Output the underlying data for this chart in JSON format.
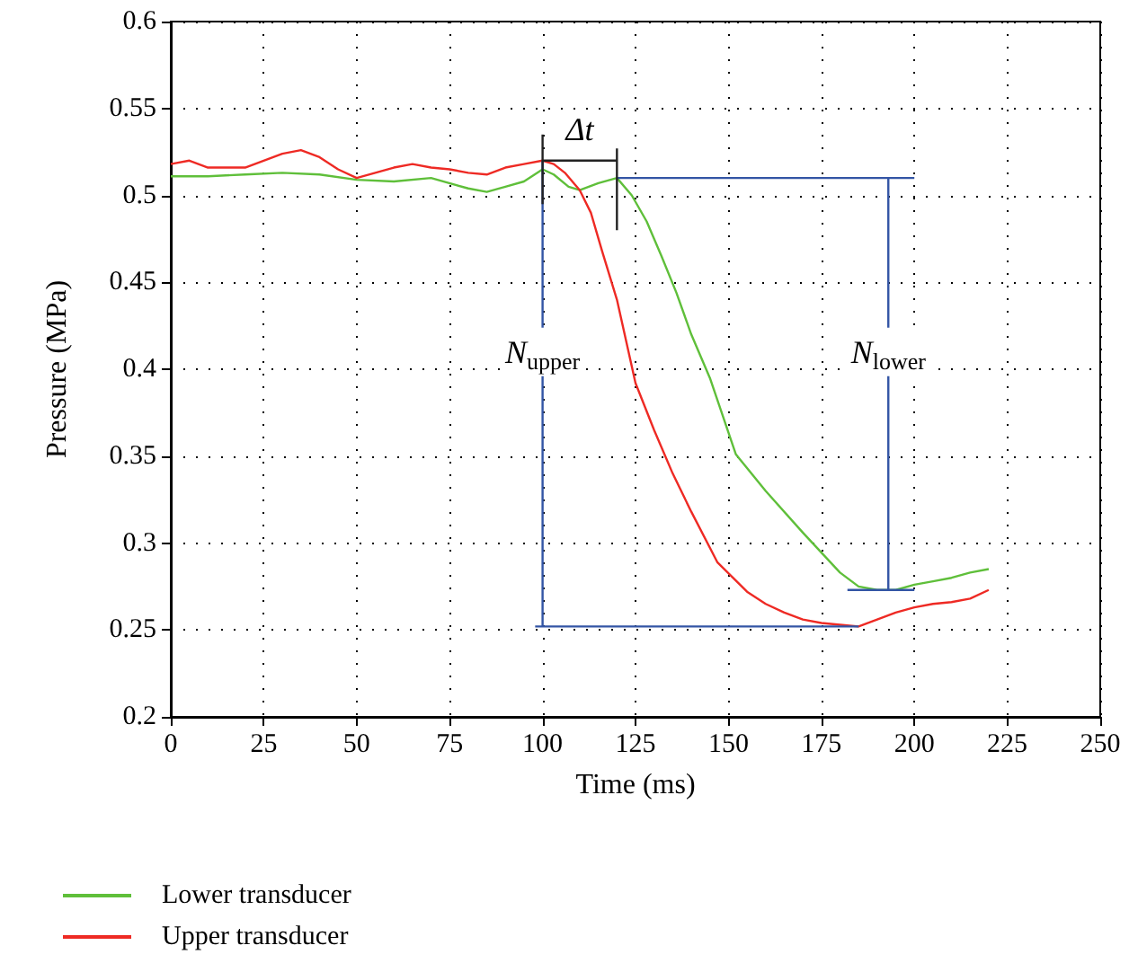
{
  "chart_data": {
    "type": "line",
    "xlabel": "Time (ms)",
    "ylabel": "Pressure (MPa)",
    "xlim": [
      0,
      250
    ],
    "xticks": [
      0,
      25,
      50,
      75,
      100,
      125,
      150,
      175,
      200,
      225,
      250
    ],
    "ylim": [
      0.2,
      0.6
    ],
    "yticks": [
      0.2,
      0.25,
      0.3,
      0.35,
      0.4,
      0.45,
      0.5,
      0.55,
      0.6
    ],
    "grid": true,
    "legend": "bottom left",
    "marker": "none",
    "line_style": "solid",
    "series": [
      {
        "name": "Lower transducer",
        "color": "#5fbf3a",
        "x": [
          0,
          10,
          20,
          30,
          40,
          50,
          60,
          70,
          80,
          85,
          90,
          95,
          100,
          103,
          107,
          110,
          115,
          120,
          124,
          128,
          132,
          136,
          140,
          145,
          152,
          160,
          170,
          180,
          185,
          190,
          195,
          200,
          205,
          210,
          215,
          220
        ],
        "values": [
          0.511,
          0.511,
          0.512,
          0.513,
          0.512,
          0.509,
          0.508,
          0.51,
          0.504,
          0.502,
          0.505,
          0.508,
          0.515,
          0.512,
          0.505,
          0.503,
          0.507,
          0.51,
          0.5,
          0.485,
          0.465,
          0.444,
          0.42,
          0.395,
          0.351,
          0.33,
          0.306,
          0.283,
          0.275,
          0.273,
          0.273,
          0.276,
          0.278,
          0.28,
          0.283,
          0.285
        ]
      },
      {
        "name": "Upper transducer",
        "color": "#ee2a24",
        "x": [
          0,
          5,
          10,
          15,
          20,
          25,
          30,
          35,
          40,
          45,
          50,
          55,
          60,
          65,
          70,
          75,
          80,
          85,
          90,
          95,
          100,
          103,
          106,
          110,
          113,
          116,
          120,
          125,
          130,
          135,
          140,
          147,
          155,
          160,
          165,
          170,
          175,
          180,
          185,
          190,
          195,
          200,
          205,
          210,
          215,
          220
        ],
        "values": [
          0.518,
          0.52,
          0.516,
          0.516,
          0.516,
          0.52,
          0.524,
          0.526,
          0.522,
          0.515,
          0.51,
          0.513,
          0.516,
          0.518,
          0.516,
          0.515,
          0.513,
          0.512,
          0.516,
          0.518,
          0.52,
          0.518,
          0.513,
          0.503,
          0.49,
          0.468,
          0.44,
          0.392,
          0.365,
          0.34,
          0.318,
          0.289,
          0.272,
          0.265,
          0.26,
          0.256,
          0.254,
          0.253,
          0.252,
          0.256,
          0.26,
          0.263,
          0.265,
          0.266,
          0.268,
          0.273
        ]
      },
      {
        "color": "#3355a5",
        "x": [
          100,
          100,
          null,
          98,
          185,
          null,
          120,
          200,
          null,
          193,
          193,
          null,
          182,
          200
        ],
        "values": [
          0.52,
          0.252,
          null,
          0.252,
          0.252,
          null,
          0.51,
          0.51,
          null,
          0.51,
          0.273,
          null,
          0.273,
          0.273
        ]
      },
      {
        "color": "#222222",
        "x": [
          100,
          100,
          null,
          120,
          120,
          null,
          100,
          120
        ],
        "values": [
          0.535,
          0.495,
          null,
          0.527,
          0.48,
          null,
          0.52,
          0.52
        ]
      }
    ],
    "annotations": [
      {
        "text": "N$_{upper}$",
        "x": 100,
        "y": 0.41
      },
      {
        "text": "N$_{lower}$",
        "x": 193,
        "y": 0.41
      },
      {
        "text": "Δt",
        "x": 110,
        "y": 0.538
      }
    ]
  }
}
